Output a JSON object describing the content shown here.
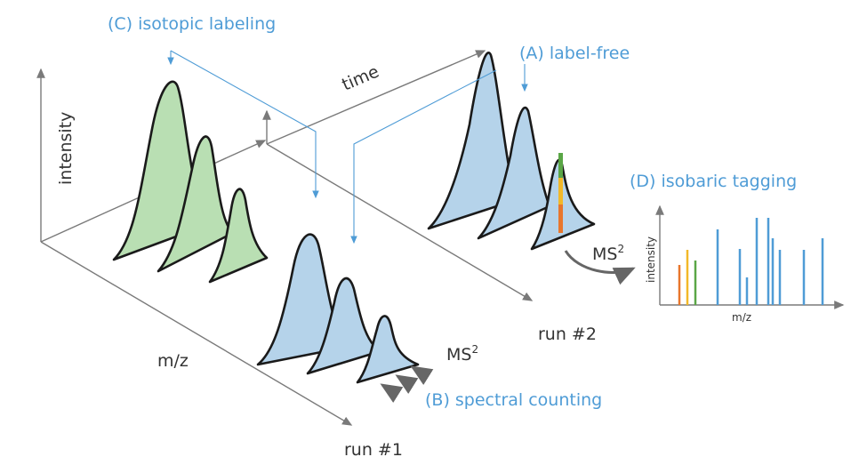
{
  "axes": {
    "intensity": "intensity",
    "time": "time",
    "mz": "m/z",
    "run1": "run #1",
    "run2": "run #2"
  },
  "labels": {
    "label_free": "(A) label-free",
    "spectral_counting": "(B) spectral counting",
    "isotopic_labeling": "(C) isotopic labeling",
    "isobaric_tagging": "(D) isobaric tagging"
  },
  "ms2": {
    "base": "MS",
    "superscript": "2"
  },
  "inset": {
    "ylabel": "intensity",
    "xlabel": "m/z",
    "reporter_colors": [
      "#e8762c",
      "#f2b829",
      "#5aa646"
    ],
    "peak_color": "#4f9cd6"
  },
  "colors": {
    "accent_blue": "#4f9cd6",
    "peak_fill_blue": "#b5d3ea",
    "peak_fill_green": "#b9dfb3",
    "axis_gray": "#7a7a7a",
    "tag_green": "#5aa646",
    "tag_yellow": "#f2b829",
    "tag_orange": "#e8762c"
  }
}
